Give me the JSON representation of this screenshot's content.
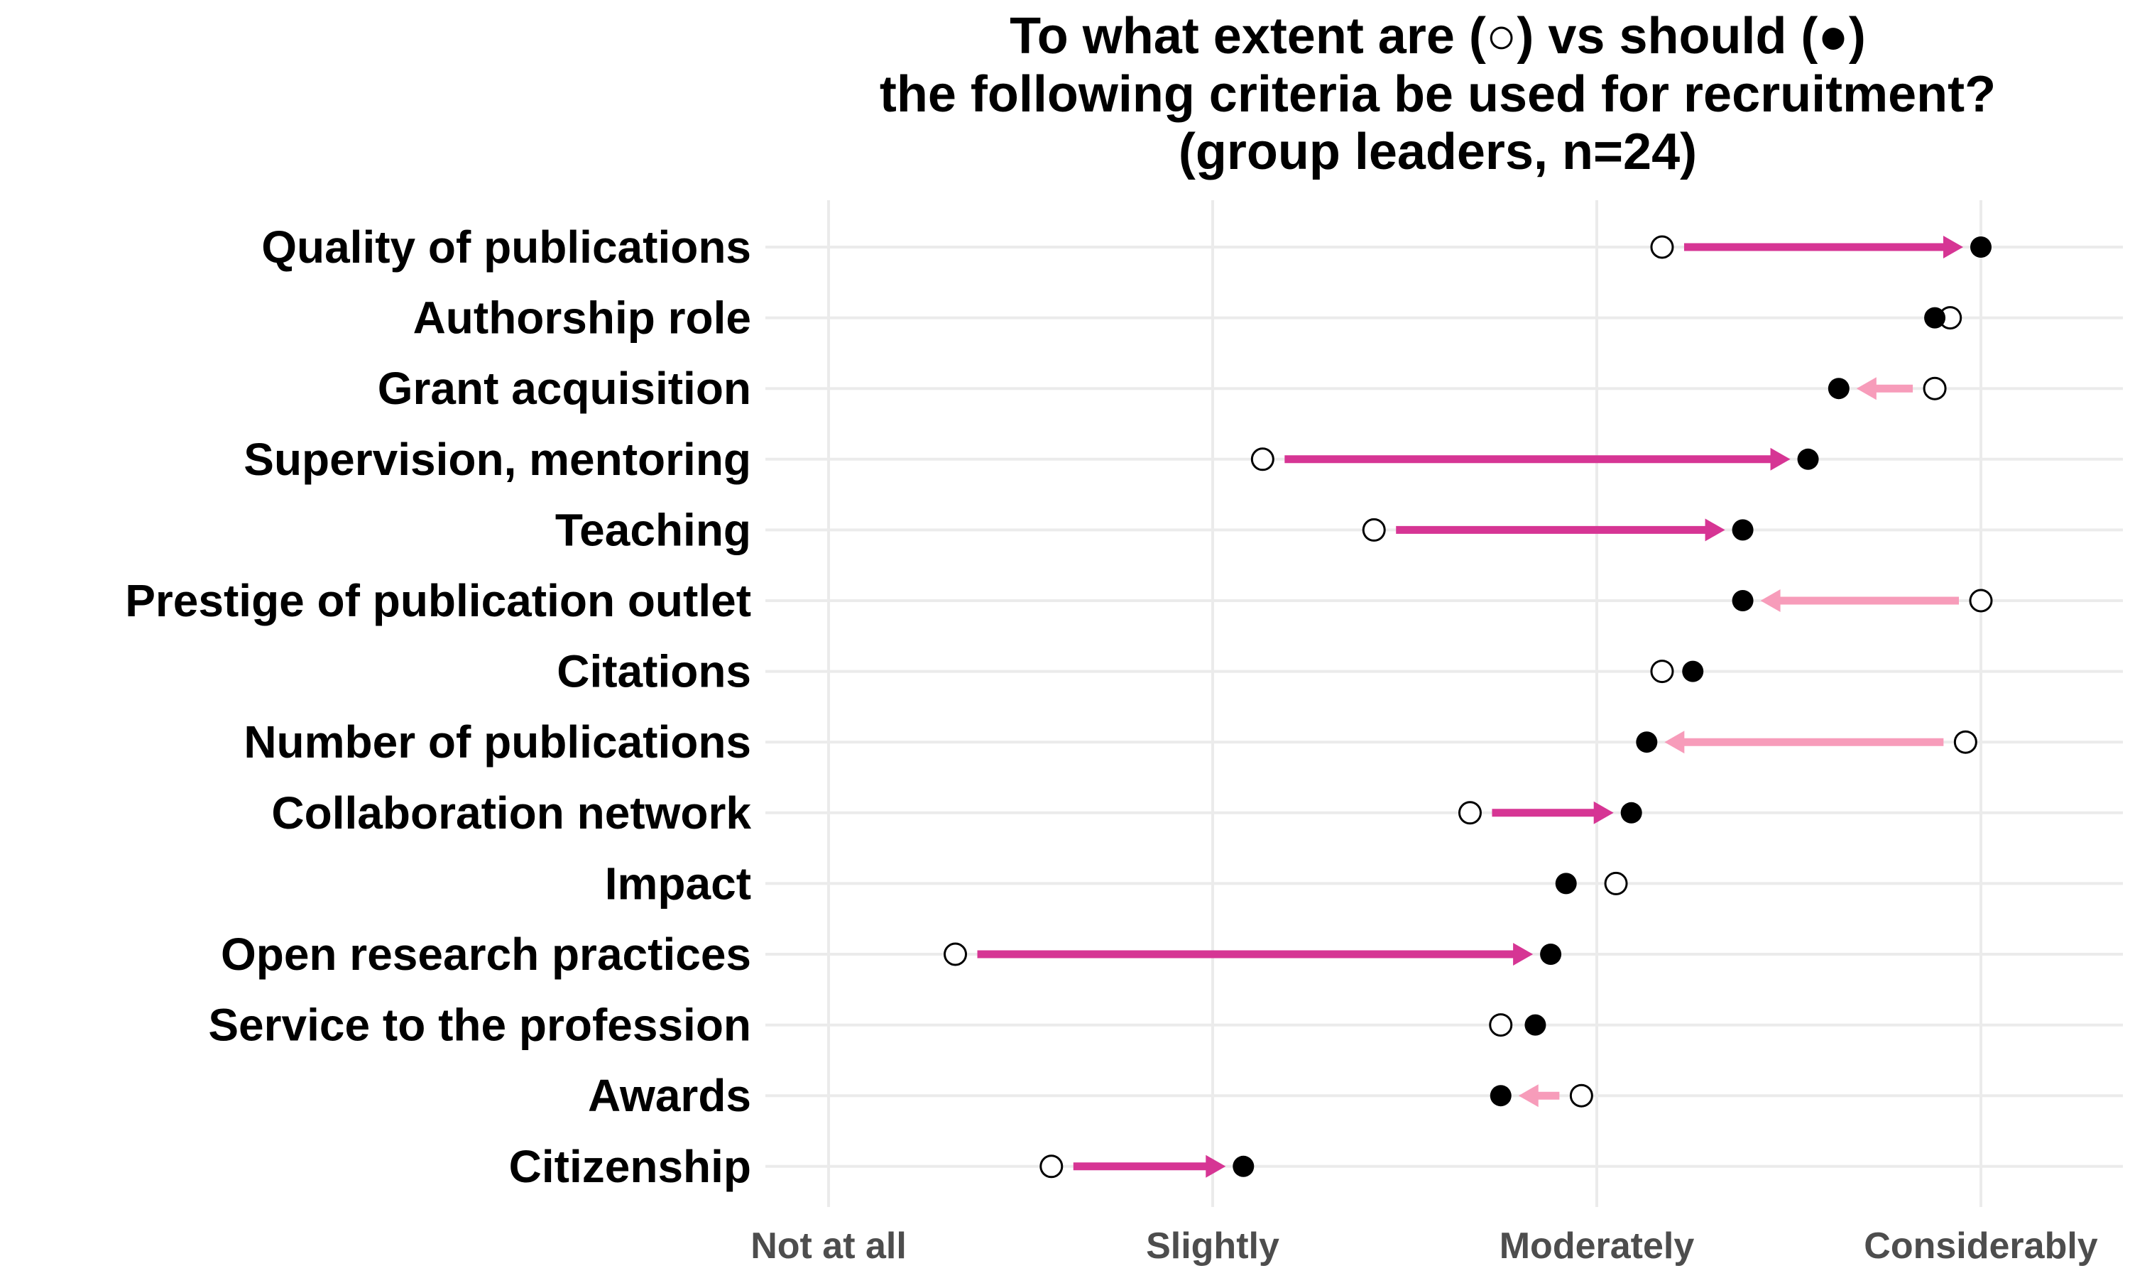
{
  "chart_data": {
    "type": "dumbbell",
    "title_lines": [
      "To what extent are (○) vs should (●)",
      "the following criteria be used for recruitment?",
      "(group leaders, n=24)"
    ],
    "xlabel": "",
    "ylabel": "",
    "x_ticks": [
      1,
      2,
      3,
      4
    ],
    "x_tick_labels": [
      "Not at all",
      "Slightly",
      "Moderately",
      "Considerably"
    ],
    "xlim": [
      1,
      4.35
    ],
    "grid": true,
    "colors": {
      "increase": "#d63594",
      "decrease": "#f79cba",
      "should_marker": "#000000",
      "are_marker_fill": "#ffffff",
      "are_marker_stroke": "#000000"
    },
    "categories": [
      "Quality of publications",
      "Authorship role",
      "Grant acquisition",
      "Supervision, mentoring",
      "Teaching",
      "Prestige of publication outlet",
      "Citations",
      "Number of publications",
      "Collaboration network",
      "Impact",
      "Open research practices",
      "Service to the profession",
      "Awards",
      "Citizenship"
    ],
    "series": [
      {
        "name": "are",
        "values": [
          3.17,
          3.92,
          3.88,
          2.13,
          2.42,
          4.0,
          3.17,
          3.96,
          2.67,
          3.05,
          1.33,
          2.75,
          2.96,
          1.58
        ]
      },
      {
        "name": "should",
        "values": [
          4.0,
          3.88,
          3.63,
          3.55,
          3.38,
          3.38,
          3.25,
          3.13,
          3.09,
          2.92,
          2.88,
          2.84,
          2.75,
          2.08
        ]
      }
    ]
  }
}
